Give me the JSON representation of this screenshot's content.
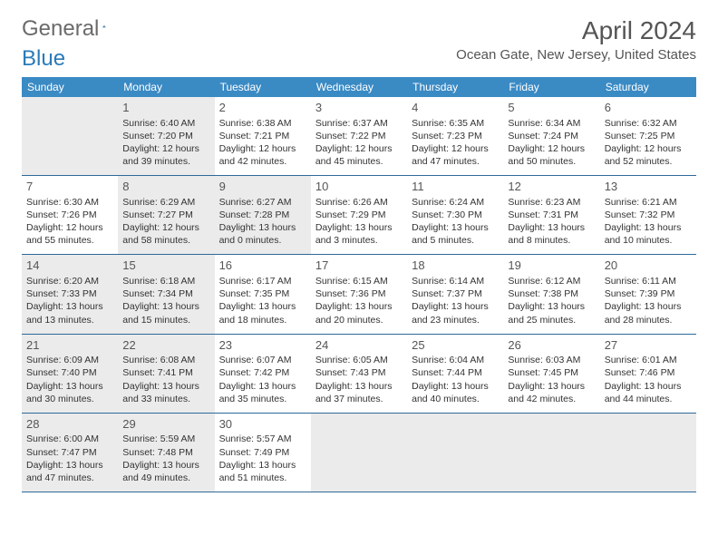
{
  "logo": {
    "part1": "General",
    "part2": "Blue"
  },
  "title": "April 2024",
  "location": "Ocean Gate, New Jersey, United States",
  "colors": {
    "header_bg": "#3a8ac4",
    "header_text": "#ffffff",
    "row_border": "#2e6a99",
    "shaded_bg": "#ebebeb",
    "text": "#333333",
    "title_text": "#555555"
  },
  "daysOfWeek": [
    "Sunday",
    "Monday",
    "Tuesday",
    "Wednesday",
    "Thursday",
    "Friday",
    "Saturday"
  ],
  "weeks": [
    [
      {
        "day": null,
        "shaded": true
      },
      {
        "day": 1,
        "shaded": true,
        "sunrise": "6:40 AM",
        "sunset": "7:20 PM",
        "dl1": "12 hours",
        "dl2": "and 39 minutes."
      },
      {
        "day": 2,
        "shaded": false,
        "sunrise": "6:38 AM",
        "sunset": "7:21 PM",
        "dl1": "12 hours",
        "dl2": "and 42 minutes."
      },
      {
        "day": 3,
        "shaded": false,
        "sunrise": "6:37 AM",
        "sunset": "7:22 PM",
        "dl1": "12 hours",
        "dl2": "and 45 minutes."
      },
      {
        "day": 4,
        "shaded": false,
        "sunrise": "6:35 AM",
        "sunset": "7:23 PM",
        "dl1": "12 hours",
        "dl2": "and 47 minutes."
      },
      {
        "day": 5,
        "shaded": false,
        "sunrise": "6:34 AM",
        "sunset": "7:24 PM",
        "dl1": "12 hours",
        "dl2": "and 50 minutes."
      },
      {
        "day": 6,
        "shaded": false,
        "sunrise": "6:32 AM",
        "sunset": "7:25 PM",
        "dl1": "12 hours",
        "dl2": "and 52 minutes."
      }
    ],
    [
      {
        "day": 7,
        "shaded": false,
        "sunrise": "6:30 AM",
        "sunset": "7:26 PM",
        "dl1": "12 hours",
        "dl2": "and 55 minutes."
      },
      {
        "day": 8,
        "shaded": true,
        "sunrise": "6:29 AM",
        "sunset": "7:27 PM",
        "dl1": "12 hours",
        "dl2": "and 58 minutes."
      },
      {
        "day": 9,
        "shaded": true,
        "sunrise": "6:27 AM",
        "sunset": "7:28 PM",
        "dl1": "13 hours",
        "dl2": "and 0 minutes."
      },
      {
        "day": 10,
        "shaded": false,
        "sunrise": "6:26 AM",
        "sunset": "7:29 PM",
        "dl1": "13 hours",
        "dl2": "and 3 minutes."
      },
      {
        "day": 11,
        "shaded": false,
        "sunrise": "6:24 AM",
        "sunset": "7:30 PM",
        "dl1": "13 hours",
        "dl2": "and 5 minutes."
      },
      {
        "day": 12,
        "shaded": false,
        "sunrise": "6:23 AM",
        "sunset": "7:31 PM",
        "dl1": "13 hours",
        "dl2": "and 8 minutes."
      },
      {
        "day": 13,
        "shaded": false,
        "sunrise": "6:21 AM",
        "sunset": "7:32 PM",
        "dl1": "13 hours",
        "dl2": "and 10 minutes."
      }
    ],
    [
      {
        "day": 14,
        "shaded": true,
        "sunrise": "6:20 AM",
        "sunset": "7:33 PM",
        "dl1": "13 hours",
        "dl2": "and 13 minutes."
      },
      {
        "day": 15,
        "shaded": true,
        "sunrise": "6:18 AM",
        "sunset": "7:34 PM",
        "dl1": "13 hours",
        "dl2": "and 15 minutes."
      },
      {
        "day": 16,
        "shaded": false,
        "sunrise": "6:17 AM",
        "sunset": "7:35 PM",
        "dl1": "13 hours",
        "dl2": "and 18 minutes."
      },
      {
        "day": 17,
        "shaded": false,
        "sunrise": "6:15 AM",
        "sunset": "7:36 PM",
        "dl1": "13 hours",
        "dl2": "and 20 minutes."
      },
      {
        "day": 18,
        "shaded": false,
        "sunrise": "6:14 AM",
        "sunset": "7:37 PM",
        "dl1": "13 hours",
        "dl2": "and 23 minutes."
      },
      {
        "day": 19,
        "shaded": false,
        "sunrise": "6:12 AM",
        "sunset": "7:38 PM",
        "dl1": "13 hours",
        "dl2": "and 25 minutes."
      },
      {
        "day": 20,
        "shaded": false,
        "sunrise": "6:11 AM",
        "sunset": "7:39 PM",
        "dl1": "13 hours",
        "dl2": "and 28 minutes."
      }
    ],
    [
      {
        "day": 21,
        "shaded": true,
        "sunrise": "6:09 AM",
        "sunset": "7:40 PM",
        "dl1": "13 hours",
        "dl2": "and 30 minutes."
      },
      {
        "day": 22,
        "shaded": true,
        "sunrise": "6:08 AM",
        "sunset": "7:41 PM",
        "dl1": "13 hours",
        "dl2": "and 33 minutes."
      },
      {
        "day": 23,
        "shaded": false,
        "sunrise": "6:07 AM",
        "sunset": "7:42 PM",
        "dl1": "13 hours",
        "dl2": "and 35 minutes."
      },
      {
        "day": 24,
        "shaded": false,
        "sunrise": "6:05 AM",
        "sunset": "7:43 PM",
        "dl1": "13 hours",
        "dl2": "and 37 minutes."
      },
      {
        "day": 25,
        "shaded": false,
        "sunrise": "6:04 AM",
        "sunset": "7:44 PM",
        "dl1": "13 hours",
        "dl2": "and 40 minutes."
      },
      {
        "day": 26,
        "shaded": false,
        "sunrise": "6:03 AM",
        "sunset": "7:45 PM",
        "dl1": "13 hours",
        "dl2": "and 42 minutes."
      },
      {
        "day": 27,
        "shaded": false,
        "sunrise": "6:01 AM",
        "sunset": "7:46 PM",
        "dl1": "13 hours",
        "dl2": "and 44 minutes."
      }
    ],
    [
      {
        "day": 28,
        "shaded": true,
        "sunrise": "6:00 AM",
        "sunset": "7:47 PM",
        "dl1": "13 hours",
        "dl2": "and 47 minutes."
      },
      {
        "day": 29,
        "shaded": true,
        "sunrise": "5:59 AM",
        "sunset": "7:48 PM",
        "dl1": "13 hours",
        "dl2": "and 49 minutes."
      },
      {
        "day": 30,
        "shaded": false,
        "sunrise": "5:57 AM",
        "sunset": "7:49 PM",
        "dl1": "13 hours",
        "dl2": "and 51 minutes."
      },
      {
        "day": null,
        "shaded": true
      },
      {
        "day": null,
        "shaded": true
      },
      {
        "day": null,
        "shaded": true
      },
      {
        "day": null,
        "shaded": true
      }
    ]
  ]
}
